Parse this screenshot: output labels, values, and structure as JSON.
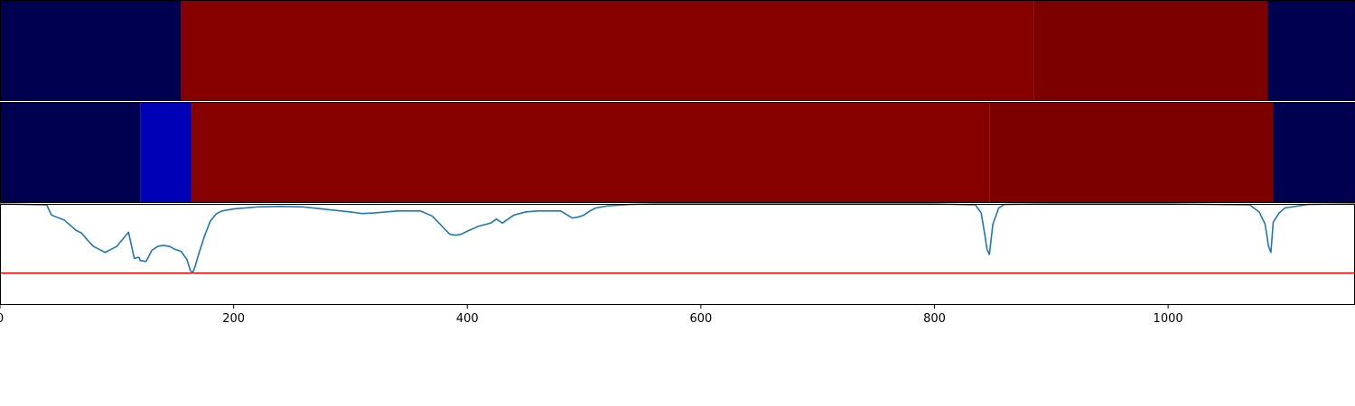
{
  "chart_data": [
    {
      "type": "heatmap",
      "xlim": [
        0,
        1160
      ],
      "segments": [
        {
          "x0": 0,
          "x1": 155,
          "color": "#000050"
        },
        {
          "x0": 155,
          "x1": 885,
          "color": "#870000"
        },
        {
          "x0": 885,
          "x1": 1085,
          "color": "#7d0000"
        },
        {
          "x0": 1085,
          "x1": 1160,
          "color": "#000050"
        }
      ]
    },
    {
      "type": "heatmap",
      "xlim": [
        0,
        1160
      ],
      "segments": [
        {
          "x0": 0,
          "x1": 120,
          "color": "#000050"
        },
        {
          "x0": 120,
          "x1": 164,
          "color": "#0000b7"
        },
        {
          "x0": 164,
          "x1": 847,
          "color": "#870000"
        },
        {
          "x0": 847,
          "x1": 1090,
          "color": "#7d0000"
        },
        {
          "x0": 1090,
          "x1": 1160,
          "color": "#000050"
        }
      ]
    },
    {
      "type": "line",
      "xlim": [
        0,
        1160
      ],
      "ylim": [
        0,
        1
      ],
      "grid": false,
      "xticks": [
        0,
        200,
        400,
        600,
        800,
        1000
      ],
      "threshold": {
        "y": 0.315,
        "color": "#ff0000"
      },
      "series": [
        {
          "color": "#1f77b4",
          "x": [
            0,
            20,
            40,
            44,
            46,
            55,
            60,
            65,
            70,
            75,
            80,
            85,
            90,
            95,
            100,
            105,
            110,
            115,
            118,
            119,
            120,
            125,
            130,
            135,
            140,
            145,
            150,
            155,
            160,
            163,
            165,
            167,
            170,
            175,
            180,
            185,
            190,
            200,
            220,
            240,
            260,
            280,
            300,
            310,
            320,
            340,
            360,
            370,
            380,
            385,
            390,
            395,
            400,
            410,
            420,
            425,
            430,
            440,
            450,
            460,
            480,
            490,
            495,
            500,
            505,
            510,
            520,
            540,
            560,
            600,
            700,
            800,
            835,
            840,
            843,
            845,
            847,
            848,
            850,
            855,
            860,
            900,
            1000,
            1070,
            1078,
            1083,
            1086,
            1088,
            1090,
            1095,
            1100,
            1120,
            1160
          ],
          "y": [
            1.0,
            0.995,
            0.99,
            0.89,
            0.88,
            0.84,
            0.79,
            0.74,
            0.71,
            0.64,
            0.58,
            0.55,
            0.52,
            0.55,
            0.58,
            0.65,
            0.72,
            0.46,
            0.47,
            0.47,
            0.44,
            0.43,
            0.54,
            0.58,
            0.59,
            0.58,
            0.55,
            0.53,
            0.45,
            0.34,
            0.32,
            0.38,
            0.5,
            0.68,
            0.83,
            0.9,
            0.93,
            0.95,
            0.97,
            0.975,
            0.97,
            0.945,
            0.92,
            0.905,
            0.91,
            0.93,
            0.93,
            0.88,
            0.76,
            0.7,
            0.69,
            0.7,
            0.73,
            0.78,
            0.81,
            0.85,
            0.81,
            0.89,
            0.92,
            0.93,
            0.93,
            0.86,
            0.87,
            0.89,
            0.93,
            0.96,
            0.98,
            0.995,
            1.0,
            1.0,
            1.0,
            1.0,
            0.99,
            0.91,
            0.7,
            0.55,
            0.5,
            0.6,
            0.8,
            0.96,
            0.995,
            1.0,
            1.0,
            0.99,
            0.92,
            0.8,
            0.58,
            0.52,
            0.82,
            0.91,
            0.96,
            0.995,
            1.0
          ]
        }
      ]
    }
  ]
}
